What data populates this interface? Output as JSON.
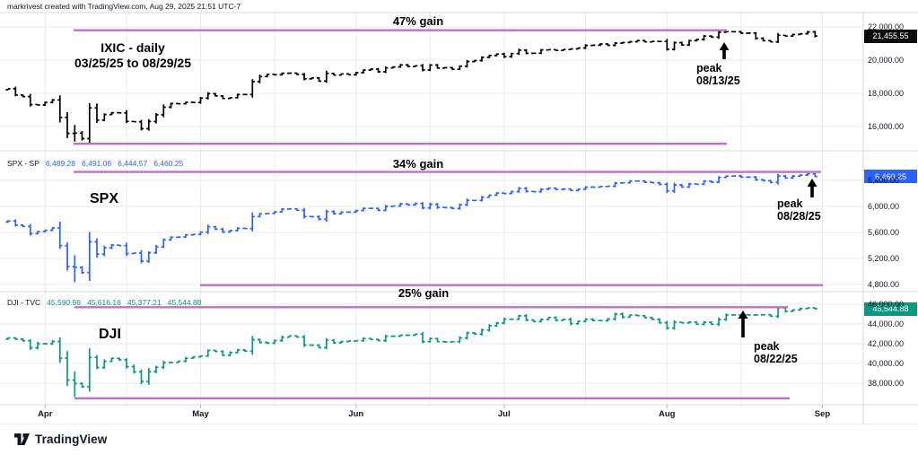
{
  "attribution": "markrivest created with TradingView.com, Aug 29, 2025 21:51 UTC-7",
  "logo_text": "TradingView",
  "colors": {
    "grid": "#e9ebef",
    "separator": "#d6d9de",
    "axis_tick": "#b2b5be",
    "axis_text": "#131722",
    "annotation": "#000000",
    "purple_line": "#c06fce",
    "price_label_text": "#ffffff"
  },
  "time_axis": {
    "months": [
      {
        "label": "Apr",
        "index": 5
      },
      {
        "label": "May",
        "index": 26
      },
      {
        "label": "Jun",
        "index": 47
      },
      {
        "label": "Jul",
        "index": 67
      },
      {
        "label": "Aug",
        "index": 89
      },
      {
        "label": "Sep",
        "index": 110
      }
    ],
    "minor_gridline_indices": [
      16,
      36,
      57,
      78,
      99
    ]
  },
  "chart_data": [
    {
      "type": "ohlc-bar",
      "symbol": "IXIC",
      "title_lines": [
        "IXIC - daily",
        "03/25/25 to 08/29/25"
      ],
      "gain_label": "47% gain",
      "peak_lines": [
        "peak",
        "08/13/25"
      ],
      "peak_bar_index": 97,
      "price_label": "21,455.55",
      "color": "#000000",
      "label_bg": "#0c0c0c",
      "y_ticks": [
        {
          "value": 22000,
          "label": "22,000.00"
        },
        {
          "value": 20000,
          "label": "20,000.00"
        },
        {
          "value": 18000,
          "label": "18,000.00"
        },
        {
          "value": 16000,
          "label": "16,000.00"
        }
      ],
      "high_line_value": 21800,
      "low_line_value": 14960,
      "bar_overrides": {
        "9": {
          "high": 16100,
          "low": 15100
        }
      },
      "closes": [
        18272,
        17899,
        17804,
        17323,
        17299,
        17450,
        17601,
        16550,
        15588,
        15603,
        15268,
        17125,
        16387,
        16724,
        16831,
        16823,
        16307,
        16286,
        15871,
        16300,
        16708,
        17166,
        17383,
        17366,
        17461,
        17446,
        17710,
        17978,
        17844,
        17690,
        17738,
        17928,
        17929,
        18708,
        19010,
        19146,
        19112,
        19211,
        19215,
        19143,
        18872,
        18925,
        18737,
        19199,
        19100,
        19175,
        19114,
        19242,
        19398,
        19460,
        19298,
        19530,
        19591,
        19715,
        19615,
        19662,
        19406,
        19701,
        19521,
        19546,
        19447,
        19631,
        19913,
        19973,
        20167,
        20273,
        20370,
        20203,
        20393,
        20601,
        20412,
        20418,
        20611,
        20631,
        20586,
        20640,
        20678,
        20730,
        20885,
        20896,
        20974,
        20893,
        21020,
        21058,
        21108,
        21178,
        21098,
        21130,
        21122,
        20650,
        21054,
        20916,
        21169,
        21243,
        21450,
        21385,
        21681,
        21713,
        21710,
        21623,
        21629,
        21314,
        21172,
        21100,
        21497,
        21449,
        21544,
        21590,
        21705,
        21456
      ]
    },
    {
      "type": "ohlc-bar",
      "symbol": "SPX",
      "big_label": "SPX",
      "header_symbol": "SPX - SP",
      "ohlc": [
        "6,489.28",
        "6,491.08",
        "6,444.57",
        "6,460.25"
      ],
      "gain_label": "34% gain",
      "peak_lines": [
        "peak",
        "08/28/25"
      ],
      "peak_bar_index": 108,
      "price_label": "6,460.25",
      "color": "#2962ff",
      "label_bg": "#2962ff",
      "y_ticks": [
        {
          "value": 6400,
          "label": "6,400.00"
        },
        {
          "value": 6000,
          "label": "6,000.00"
        },
        {
          "value": 5600,
          "label": "5,600.00"
        },
        {
          "value": 5200,
          "label": "5,200.00"
        },
        {
          "value": 4800,
          "label": "4,800.00"
        }
      ],
      "high_line_value": 6530,
      "low_line_value": 4790,
      "bar_overrides": {
        "9": {
          "high": 5250,
          "low": 4835
        }
      },
      "closes": [
        5777,
        5712,
        5693,
        5581,
        5612,
        5633,
        5671,
        5396,
        5074,
        5062,
        4983,
        5457,
        5268,
        5363,
        5406,
        5397,
        5276,
        5283,
        5158,
        5288,
        5376,
        5485,
        5525,
        5529,
        5561,
        5569,
        5604,
        5687,
        5650,
        5607,
        5631,
        5664,
        5660,
        5844,
        5887,
        5893,
        5916,
        5958,
        5963,
        5940,
        5845,
        5842,
        5803,
        5922,
        5888,
        5912,
        5912,
        5936,
        5970,
        5971,
        5939,
        6000,
        6006,
        6039,
        6022,
        6045,
        5977,
        6033,
        5983,
        5981,
        5968,
        6025,
        6092,
        6092,
        6141,
        6173,
        6205,
        6198,
        6227,
        6279,
        6230,
        6226,
        6263,
        6280,
        6260,
        6268,
        6244,
        6264,
        6297,
        6297,
        6306,
        6310,
        6359,
        6363,
        6389,
        6390,
        6371,
        6363,
        6339,
        6238,
        6330,
        6299,
        6345,
        6340,
        6389,
        6373,
        6446,
        6466,
        6469,
        6450,
        6449,
        6411,
        6395,
        6370,
        6467,
        6439,
        6466,
        6481,
        6501,
        6460
      ]
    },
    {
      "type": "ohlc-bar",
      "symbol": "DJI",
      "big_label": "DJI",
      "header_symbol": "DJI - TVC",
      "ohlc": [
        "45,590.96",
        "45,616.16",
        "45,377.21",
        "45,544.88"
      ],
      "gain_label": "25% gain",
      "peak_lines": [
        "peak",
        "08/22/25"
      ],
      "peak_bar_index": 104,
      "price_label": "45,544.88",
      "color": "#089981",
      "label_bg": "#089981",
      "y_ticks": [
        {
          "value": 46000,
          "label": "46,000.00"
        },
        {
          "value": 44000,
          "label": "44,000.00"
        },
        {
          "value": 42000,
          "label": "42,000.00"
        },
        {
          "value": 40000,
          "label": "40,000.00"
        },
        {
          "value": 38000,
          "label": "38,000.00"
        }
      ],
      "high_line_value": 45700,
      "low_line_value": 36470,
      "bar_overrides": {
        "9": {
          "high": 39200,
          "low": 36600
        }
      },
      "closes": [
        42587,
        42455,
        42299,
        41583,
        42001,
        41989,
        42225,
        40545,
        38315,
        37965,
        37645,
        40608,
        39593,
        40212,
        40524,
        40368,
        39669,
        39142,
        38170,
        39186,
        39606,
        40093,
        40113,
        40227,
        40527,
        40669,
        40752,
        41317,
        41218,
        40829,
        41113,
        41368,
        41249,
        42410,
        42140,
        42051,
        42322,
        42655,
        42792,
        42677,
        41860,
        41859,
        41603,
        42343,
        42098,
        42216,
        42270,
        42305,
        42520,
        42428,
        42319,
        42763,
        42762,
        42867,
        42866,
        42968,
        42198,
        42515,
        42215,
        42172,
        42207,
        42582,
        43089,
        42982,
        43387,
        43819,
        44095,
        44495,
        44484,
        44828,
        44406,
        44240,
        44458,
        44651,
        44372,
        44460,
        44023,
        44255,
        44485,
        44342,
        44323,
        44502,
        45010,
        44694,
        44902,
        44838,
        44633,
        44461,
        44131,
        43589,
        44174,
        44112,
        44193,
        43969,
        44176,
        43975,
        44458,
        44922,
        44911,
        44946,
        44912,
        44922,
        44938,
        44785,
        45632,
        45282,
        45418,
        45565,
        45637,
        45545
      ]
    }
  ]
}
